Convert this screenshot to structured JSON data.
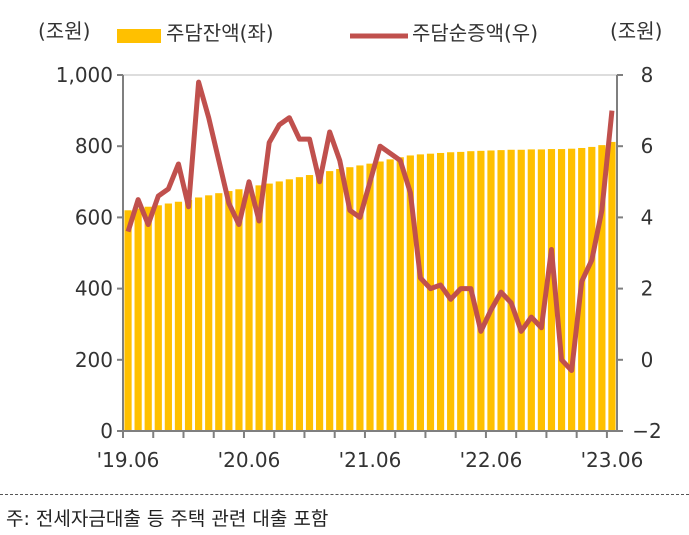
{
  "chart_data": {
    "type": "bar+line",
    "left_unit": "(조원)",
    "right_unit": "(조원)",
    "legend": [
      {
        "name": "주담잔액(좌)",
        "color": "#FFC000",
        "kind": "bar"
      },
      {
        "name": "주담순증액(우)",
        "color": "#C0504D",
        "kind": "line"
      }
    ],
    "x_labels": [
      "'19.06",
      "'20.06",
      "'21.06",
      "'22.06",
      "'23.06"
    ],
    "x_label_index": [
      0,
      12,
      24,
      36,
      48
    ],
    "left_axis": {
      "min": 0,
      "max": 1000,
      "ticks": [
        0,
        200,
        400,
        600,
        800,
        1000
      ],
      "tick_labels": [
        "0",
        "200",
        "400",
        "600",
        "800",
        "1,000"
      ]
    },
    "right_axis": {
      "min": -2,
      "max": 8,
      "ticks": [
        -2,
        0,
        2,
        4,
        6,
        8
      ],
      "tick_labels": [
        "−2",
        "0",
        "2",
        "4",
        "6",
        "8"
      ]
    },
    "bar_values": [
      620,
      625,
      630,
      634,
      639,
      644,
      649,
      656,
      662,
      668,
      674,
      679,
      685,
      690,
      695,
      701,
      707,
      713,
      719,
      724,
      730,
      736,
      741,
      746,
      751,
      757,
      763,
      769,
      774,
      777,
      779,
      781,
      783,
      784,
      786,
      787,
      788,
      789,
      790,
      790,
      791,
      791,
      792,
      792,
      793,
      795,
      798,
      803,
      812
    ],
    "line_values": [
      3.6,
      4.5,
      3.8,
      4.6,
      4.8,
      5.5,
      4.3,
      7.8,
      6.8,
      5.6,
      4.4,
      3.8,
      5.0,
      3.9,
      6.1,
      6.6,
      6.8,
      6.2,
      6.2,
      5.0,
      6.4,
      5.6,
      4.2,
      4.0,
      5.0,
      6.0,
      5.8,
      5.6,
      4.7,
      2.3,
      2.0,
      2.1,
      1.7,
      2.0,
      2.0,
      0.8,
      1.4,
      1.9,
      1.6,
      0.8,
      1.2,
      0.9,
      3.1,
      0.0,
      -0.3,
      2.2,
      2.8,
      4.2,
      7.0
    ],
    "colors": {
      "bar": "#FFC000",
      "line": "#C0504D",
      "axis": "#7f7f7f"
    }
  },
  "footnote": "주: 전세자금대출 등 주택 관련 대출 포함"
}
